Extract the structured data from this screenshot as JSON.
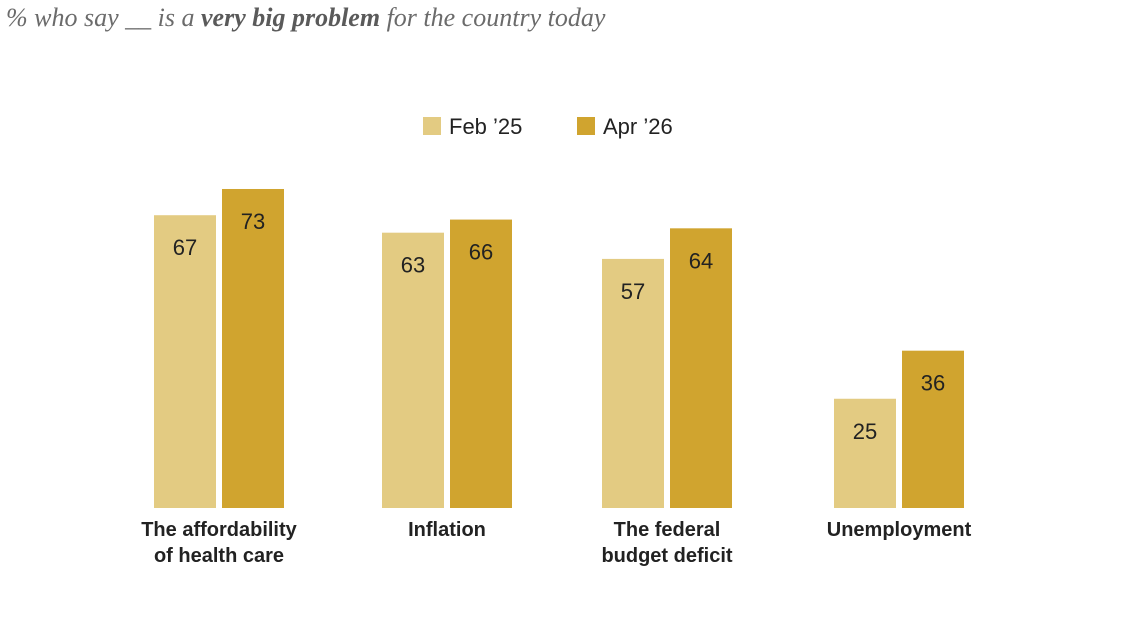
{
  "subtitle": {
    "pre": "% who say __ is a ",
    "emphasis": "very big problem",
    "post": " for the country today"
  },
  "colors": {
    "feb25": "#e3cb82",
    "apr26": "#d0a42f",
    "text": "#222222"
  },
  "chart_data": {
    "type": "bar",
    "title": "",
    "subtitle": "% who say __ is a very big problem for the country today",
    "xlabel": "",
    "ylabel": "",
    "ylim": [
      0,
      100
    ],
    "grid": false,
    "legend_placement": "top-center",
    "categories": [
      [
        "The affordability",
        "of health care"
      ],
      [
        "Inflation"
      ],
      [
        "The federal",
        "budget deficit"
      ],
      [
        "Unemployment"
      ]
    ],
    "series": [
      {
        "name": "Feb ’25",
        "color": "#e3cb82",
        "values": [
          67,
          63,
          57,
          25
        ]
      },
      {
        "name": "Apr ’26",
        "color": "#d0a42f",
        "values": [
          73,
          66,
          64,
          36
        ]
      }
    ]
  }
}
